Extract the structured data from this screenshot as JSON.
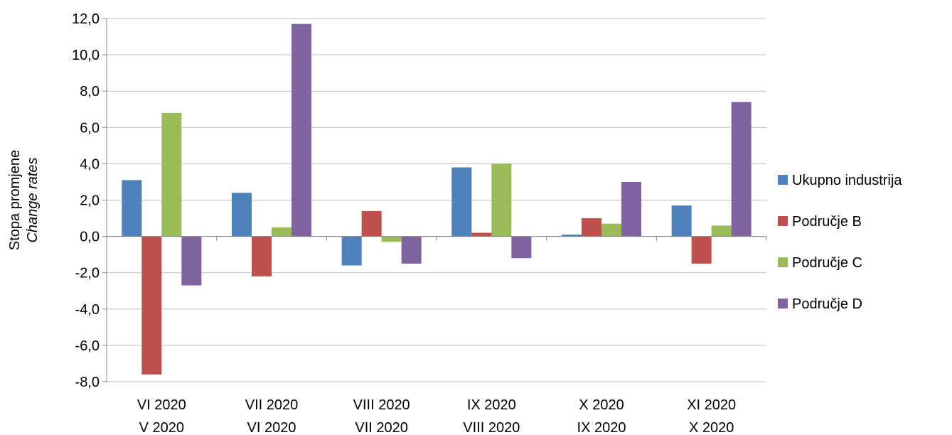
{
  "chart_data": {
    "type": "bar",
    "title": "",
    "ylabel": "Stopa promjene",
    "ylabel_italic": "Change rates",
    "categories": [
      [
        "VI 2020",
        "V 2020"
      ],
      [
        "VII 2020",
        "VI 2020"
      ],
      [
        "VIII 2020",
        "VII 2020"
      ],
      [
        "IX 2020",
        "VIII 2020"
      ],
      [
        "X 2020",
        "IX 2020"
      ],
      [
        "XI 2020",
        "X 2020"
      ]
    ],
    "series": [
      {
        "name": "Ukupno industrija",
        "color": "#4F81BD",
        "values": [
          3.1,
          2.4,
          -1.6,
          3.8,
          0.1,
          1.7
        ]
      },
      {
        "name": "Područje B",
        "color": "#C0504D",
        "values": [
          -7.6,
          -2.2,
          1.4,
          0.2,
          1.0,
          -1.5
        ]
      },
      {
        "name": "Područje C",
        "color": "#9BBB59",
        "values": [
          6.8,
          0.5,
          -0.3,
          4.0,
          0.7,
          0.6
        ]
      },
      {
        "name": "Područje D",
        "color": "#8064A2",
        "values": [
          -2.7,
          11.7,
          -1.5,
          -1.2,
          3.0,
          7.4
        ]
      }
    ],
    "ylim": [
      -8.0,
      12.0
    ],
    "ytick_step": 2.0,
    "ytick_labels": [
      "-8,0",
      "-6,0",
      "-4,0",
      "-2,0",
      "0,0",
      "2,0",
      "4,0",
      "6,0",
      "8,0",
      "10,0",
      "12,0"
    ],
    "grid": true,
    "legend_position": "right"
  }
}
